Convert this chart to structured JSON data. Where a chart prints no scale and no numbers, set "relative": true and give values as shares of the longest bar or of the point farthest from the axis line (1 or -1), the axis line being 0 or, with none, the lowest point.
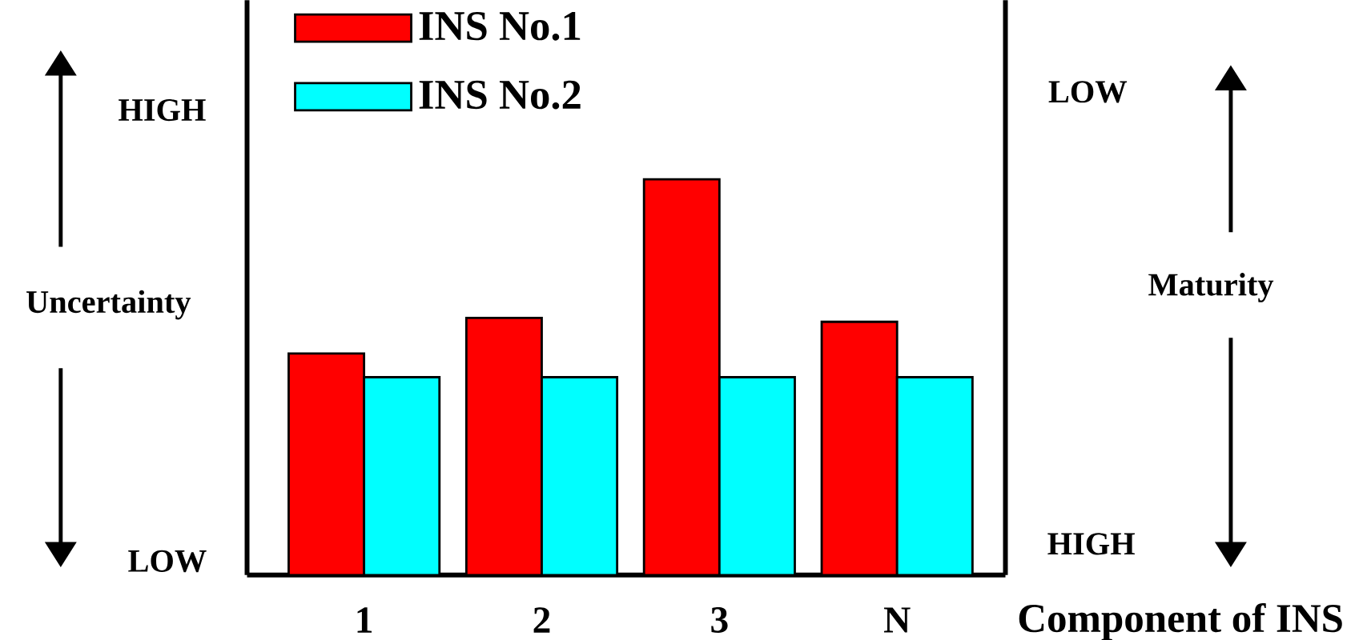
{
  "chart_data": {
    "type": "bar",
    "relative": true,
    "categories": [
      "1",
      "2",
      "3",
      "N"
    ],
    "series": [
      {
        "name": "INS No.1",
        "color": "#ff0000",
        "values": [
          0.56,
          0.65,
          1,
          0.64
        ]
      },
      {
        "name": "INS No.2",
        "color": "#00ffff",
        "values": [
          0.5,
          0.5,
          0.5,
          0.5
        ]
      }
    ],
    "ylabel": "Uncertainty",
    "legend": "top left",
    "annotations": [
      "HIGH",
      "LOW",
      "LOW",
      "HIGH",
      "Maturity",
      "Component of INS"
    ]
  }
}
